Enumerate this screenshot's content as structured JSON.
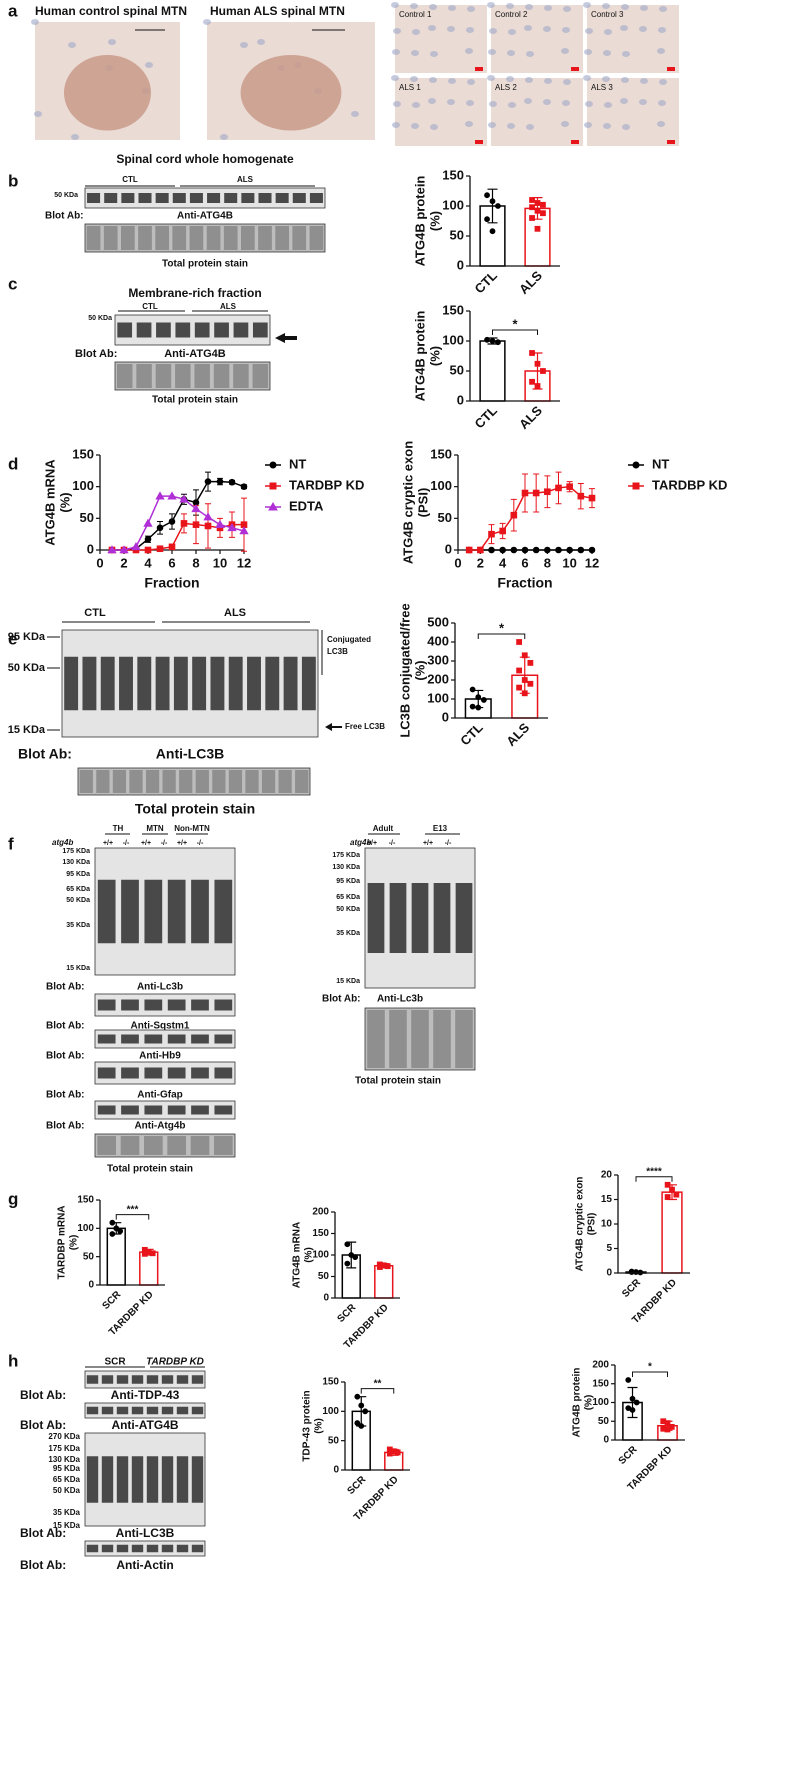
{
  "panels": {
    "letters": [
      "a",
      "b",
      "c",
      "d",
      "e",
      "f",
      "g",
      "h"
    ],
    "a": {
      "titles": [
        "Human control spinal MTN",
        "Human ALS spinal MTN"
      ],
      "thumbs": [
        "Control 1",
        "Control 2",
        "Control 3",
        "ALS 1",
        "ALS 2",
        "ALS 3"
      ]
    },
    "b": {
      "title": "Spinal cord whole homogenate",
      "groups": [
        "CTL",
        "ALS"
      ],
      "marker": "50 KDa",
      "blot_ab": "Blot Ab:",
      "antibody": "Anti-ATG4B",
      "stain": "Total protein stain"
    },
    "c": {
      "title": "Membrane-rich fraction",
      "groups": [
        "CTL",
        "ALS"
      ],
      "marker": "50 KDa",
      "blot_ab": "Blot Ab:",
      "antibody": "Anti-ATG4B",
      "stain": "Total protein stain"
    },
    "e": {
      "groups": [
        "CTL",
        "ALS"
      ],
      "markers": [
        "95 KDa",
        "50 KDa",
        "15 KDa"
      ],
      "conjugated": [
        "Conjugated",
        "LC3B"
      ],
      "free": "Free LC3B",
      "blot_ab": "Blot Ab:",
      "antibody": "Anti-LC3B",
      "stain": "Total protein stain"
    },
    "f_left": {
      "genotype": "atg4b",
      "groups": [
        "TH",
        "MTN",
        "Non-MTN"
      ],
      "lanes": [
        "+/+",
        "-/-",
        "+/+",
        "-/-",
        "+/+",
        "-/-"
      ],
      "markers": [
        "175 KDa",
        "130 KDa",
        "95 KDa",
        "65 KDa",
        "50 KDa",
        "35 KDa",
        "15 KDa"
      ],
      "blot_ab": "Blot Ab:",
      "antibodies": [
        "Anti-Lc3b",
        "Anti-Sqstm1",
        "Anti-Hb9",
        "Anti-Gfap",
        "Anti-Atg4b"
      ],
      "stain": "Total protein stain"
    },
    "f_right": {
      "genotype": "atg4b",
      "groups": [
        "Adult",
        "E13"
      ],
      "lanes": [
        "+/+",
        "-/-",
        "+/+",
        "-/-"
      ],
      "markers": [
        "175 KDa",
        "130 KDa",
        "95 KDa",
        "65 KDa",
        "50 KDa",
        "35 KDa",
        "15 KDa"
      ],
      "blot_ab": "Blot Ab:",
      "antibody": "Anti-Lc3b",
      "stain": "Total protein stain"
    },
    "h": {
      "groups": [
        "SCR",
        "TARDBP KD"
      ],
      "blot_ab": "Blot Ab:",
      "antibodies": [
        "Anti-TDP-43",
        "Anti-ATG4B",
        "Anti-LC3B",
        "Anti-Actin"
      ],
      "markers": [
        "270 KDa",
        "175 KDa",
        "130 KDa",
        "95 KDa",
        "65 KDa",
        "50 KDa",
        "35 KDa",
        "15 KDa"
      ]
    }
  },
  "chart_data": [
    {
      "type": "bar",
      "ylabel": [
        "ATG4B protein",
        "(%)"
      ],
      "categories": [
        "CTL",
        "ALS"
      ],
      "colors": [
        "#000000",
        "#e8141b"
      ],
      "values": [
        100,
        96
      ],
      "errors": [
        28,
        18
      ],
      "points": [
        [
          118,
          108,
          100,
          78,
          58
        ],
        [
          110,
          105,
          102,
          98,
          92,
          88,
          80,
          62
        ]
      ],
      "ylim": [
        0,
        150
      ],
      "yticks": [
        0,
        50,
        100,
        150
      ]
    },
    {
      "type": "bar",
      "ylabel": [
        "ATG4B protein",
        "(%)"
      ],
      "categories": [
        "CTL",
        "ALS"
      ],
      "colors": [
        "#000000",
        "#e8141b"
      ],
      "values": [
        100,
        50
      ],
      "errors": [
        5,
        30
      ],
      "points": [
        [
          102,
          100,
          98
        ],
        [
          80,
          62,
          50,
          32,
          25
        ]
      ],
      "ylim": [
        0,
        150
      ],
      "yticks": [
        0,
        50,
        100,
        150
      ],
      "significance": "*"
    },
    {
      "type": "line",
      "ylabel": [
        "ATG4B mRNA",
        "(%)"
      ],
      "xlabel": "Fraction",
      "x": [
        1,
        2,
        3,
        4,
        5,
        6,
        7,
        8,
        9,
        10,
        11,
        12
      ],
      "xlim": [
        0,
        12
      ],
      "xticks": [
        0,
        2,
        4,
        6,
        8,
        10,
        12
      ],
      "ylim": [
        0,
        150
      ],
      "yticks": [
        0,
        50,
        100,
        150
      ],
      "series": [
        {
          "name": "NT",
          "color": "#000000",
          "marker": "circle",
          "values": [
            0,
            0,
            2,
            17,
            35,
            45,
            80,
            75,
            108,
            108,
            107,
            100
          ],
          "errors": [
            0,
            0,
            2,
            5,
            10,
            12,
            8,
            20,
            15,
            5,
            3,
            3
          ]
        },
        {
          "name": "TARDBP KD",
          "color": "#e8141b",
          "marker": "square",
          "values": [
            0,
            0,
            0,
            0,
            2,
            5,
            42,
            40,
            38,
            35,
            40,
            40
          ],
          "errors": [
            0,
            0,
            0,
            0,
            2,
            3,
            15,
            30,
            35,
            15,
            20,
            42
          ]
        },
        {
          "name": "EDTA",
          "color": "#b02fd6",
          "marker": "triangle",
          "values": [
            0,
            0,
            5,
            42,
            85,
            85,
            80,
            65,
            52,
            40,
            35,
            30
          ]
        }
      ]
    },
    {
      "type": "line",
      "ylabel": [
        "ATG4B cryptic exon",
        "(PSI)"
      ],
      "xlabel": "Fraction",
      "x": [
        1,
        2,
        3,
        4,
        5,
        6,
        7,
        8,
        9,
        10,
        11,
        12
      ],
      "xlim": [
        0,
        12
      ],
      "xticks": [
        0,
        2,
        4,
        6,
        8,
        10,
        12
      ],
      "ylim": [
        0,
        150
      ],
      "yticks": [
        0,
        50,
        100,
        150
      ],
      "series": [
        {
          "name": "NT",
          "color": "#000000",
          "marker": "circle",
          "values": [
            0,
            0,
            0,
            0,
            0,
            0,
            0,
            0,
            0,
            0,
            0,
            0
          ]
        },
        {
          "name": "TARDBP KD",
          "color": "#e8141b",
          "marker": "square",
          "values": [
            0,
            0,
            25,
            30,
            55,
            90,
            90,
            92,
            98,
            100,
            85,
            82
          ],
          "errors": [
            0,
            0,
            15,
            12,
            25,
            30,
            30,
            25,
            25,
            8,
            20,
            15
          ]
        }
      ]
    },
    {
      "type": "bar",
      "ylabel": [
        "LC3B conjugated/free",
        "(%)"
      ],
      "categories": [
        "CTL",
        "ALS"
      ],
      "colors": [
        "#000000",
        "#e8141b"
      ],
      "values": [
        100,
        225
      ],
      "errors": [
        45,
        95
      ],
      "points": [
        [
          150,
          110,
          95,
          60,
          55
        ],
        [
          400,
          330,
          290,
          250,
          200,
          180,
          160,
          130
        ]
      ],
      "ylim": [
        0,
        500
      ],
      "yticks": [
        0,
        100,
        200,
        300,
        400,
        500
      ],
      "significance": "*"
    },
    {
      "type": "bar",
      "ylabel": [
        "TARDBP mRNA",
        "(%)"
      ],
      "categories": [
        "SCR",
        "TARDBP KD"
      ],
      "colors": [
        "#000000",
        "#e8141b"
      ],
      "values": [
        100,
        58
      ],
      "errors": [
        10,
        5
      ],
      "points": [
        [
          110,
          100,
          95,
          90
        ],
        [
          62,
          58,
          56,
          55
        ]
      ],
      "ylim": [
        0,
        150
      ],
      "yticks": [
        0,
        50,
        100,
        150
      ],
      "significance": "***"
    },
    {
      "type": "bar",
      "ylabel": [
        "ATG4B mRNA",
        "(%)"
      ],
      "categories": [
        "SCR",
        "TARDBP KD"
      ],
      "colors": [
        "#000000",
        "#e8141b"
      ],
      "values": [
        100,
        75
      ],
      "errors": [
        30,
        5
      ],
      "points": [
        [
          125,
          100,
          95,
          80
        ],
        [
          78,
          76,
          74,
          72
        ]
      ],
      "ylim": [
        0,
        200
      ],
      "yticks": [
        0,
        50,
        100,
        150,
        200
      ]
    },
    {
      "type": "bar",
      "ylabel": [
        "ATG4B cryptic exon",
        "(PSI)"
      ],
      "categories": [
        "SCR",
        "TARDBP KD"
      ],
      "colors": [
        "#000000",
        "#e8141b"
      ],
      "values": [
        0.2,
        16.5
      ],
      "errors": [
        0.1,
        1.5
      ],
      "points": [
        [
          0.2,
          0.2,
          0.1,
          0.3
        ],
        [
          18,
          17,
          16,
          15.5
        ]
      ],
      "ylim": [
        0,
        20
      ],
      "yticks": [
        0,
        5,
        10,
        15,
        20
      ],
      "significance": "****"
    },
    {
      "type": "bar",
      "ylabel": [
        "TDP-43 protein",
        "(%)"
      ],
      "categories": [
        "SCR",
        "TARDBP KD"
      ],
      "colors": [
        "#000000",
        "#e8141b"
      ],
      "values": [
        100,
        30
      ],
      "errors": [
        25,
        5
      ],
      "points": [
        [
          125,
          110,
          100,
          80,
          75
        ],
        [
          35,
          32,
          30,
          28
        ]
      ],
      "ylim": [
        0,
        150
      ],
      "yticks": [
        0,
        50,
        100,
        150
      ],
      "significance": "**"
    },
    {
      "type": "bar",
      "ylabel": [
        "ATG4B protein",
        "(%)"
      ],
      "categories": [
        "SCR",
        "TARDBP KD"
      ],
      "colors": [
        "#000000",
        "#e8141b"
      ],
      "values": [
        100,
        38
      ],
      "errors": [
        40,
        12
      ],
      "points": [
        [
          160,
          110,
          100,
          85,
          80
        ],
        [
          50,
          45,
          35,
          30,
          28
        ]
      ],
      "ylim": [
        0,
        200
      ],
      "yticks": [
        0,
        50,
        100,
        150,
        200
      ],
      "significance": "*"
    }
  ]
}
